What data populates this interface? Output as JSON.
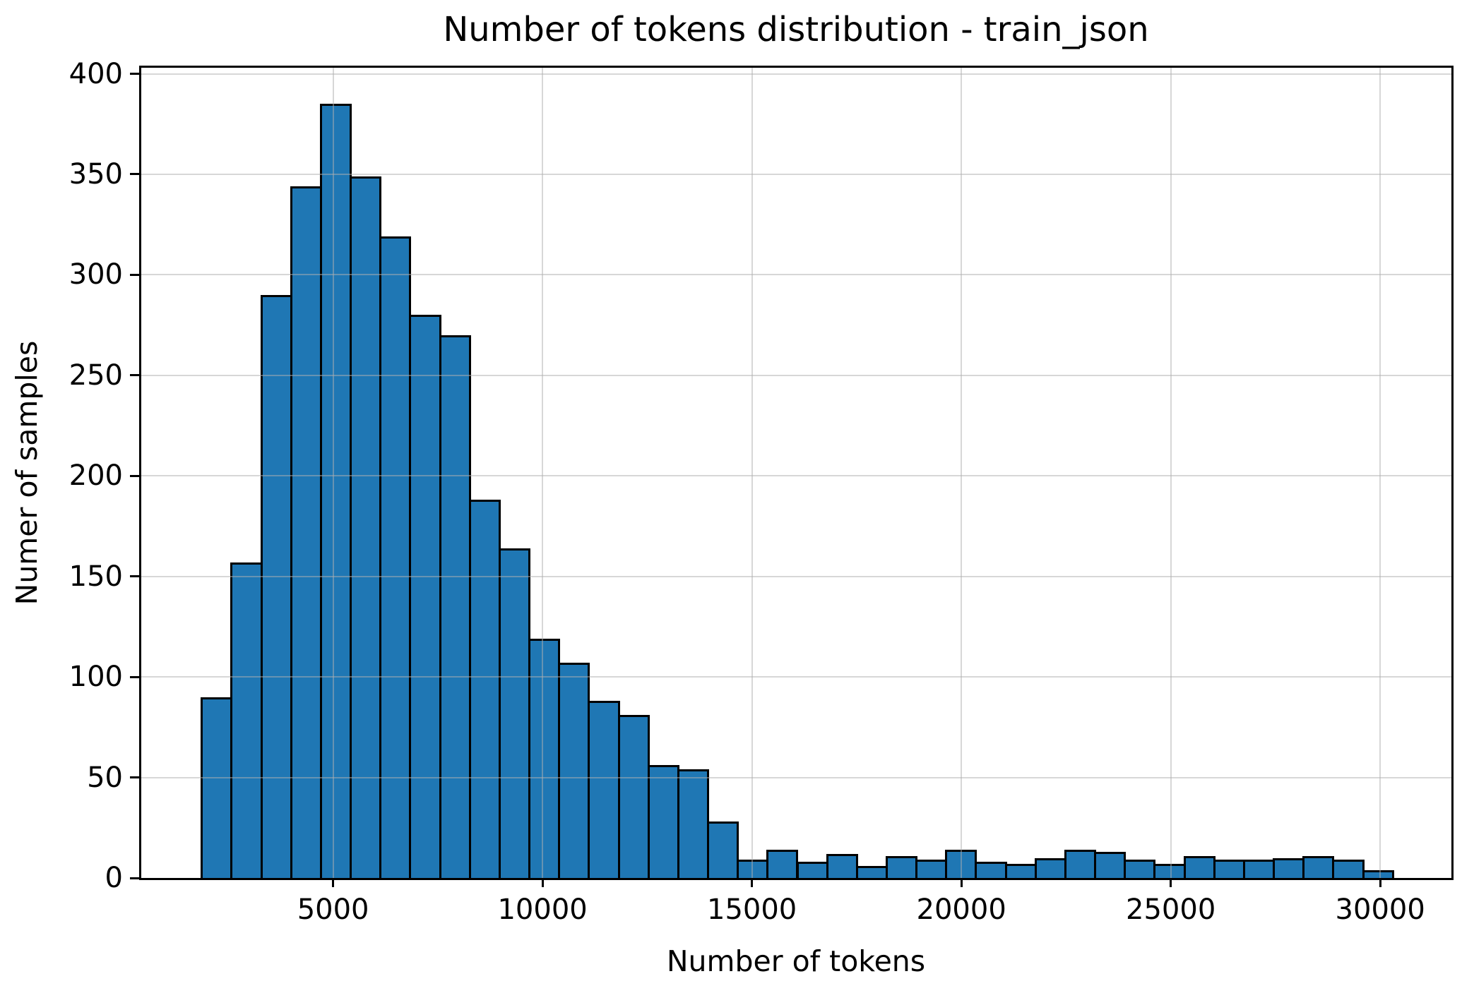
{
  "chart_data": {
    "type": "bar",
    "subtype": "histogram",
    "title": "Number of tokens distribution - train_json",
    "xlabel": "Number of tokens",
    "ylabel": "Numer of samples",
    "bin_start": 1840,
    "bin_width": 711,
    "counts": [
      90,
      157,
      290,
      344,
      385,
      349,
      319,
      280,
      270,
      188,
      164,
      119,
      107,
      88,
      81,
      56,
      54,
      28,
      9,
      14,
      8,
      12,
      6,
      11,
      9,
      14,
      8,
      7,
      10,
      14,
      13,
      9,
      7,
      11,
      9,
      9,
      10,
      11,
      9,
      4
    ],
    "x_ticks": [
      5000,
      10000,
      15000,
      20000,
      25000,
      30000
    ],
    "y_ticks": [
      0,
      50,
      100,
      150,
      200,
      250,
      300,
      350,
      400
    ],
    "xlim": [
      420,
      31700
    ],
    "ylim": [
      0,
      403
    ],
    "grid": true,
    "legend": null,
    "bar_color": "#1f77b4",
    "bar_edge_color": "#000000",
    "grid_color_rgba": "rgba(176,176,176,0.5)",
    "background": "#ffffff"
  }
}
